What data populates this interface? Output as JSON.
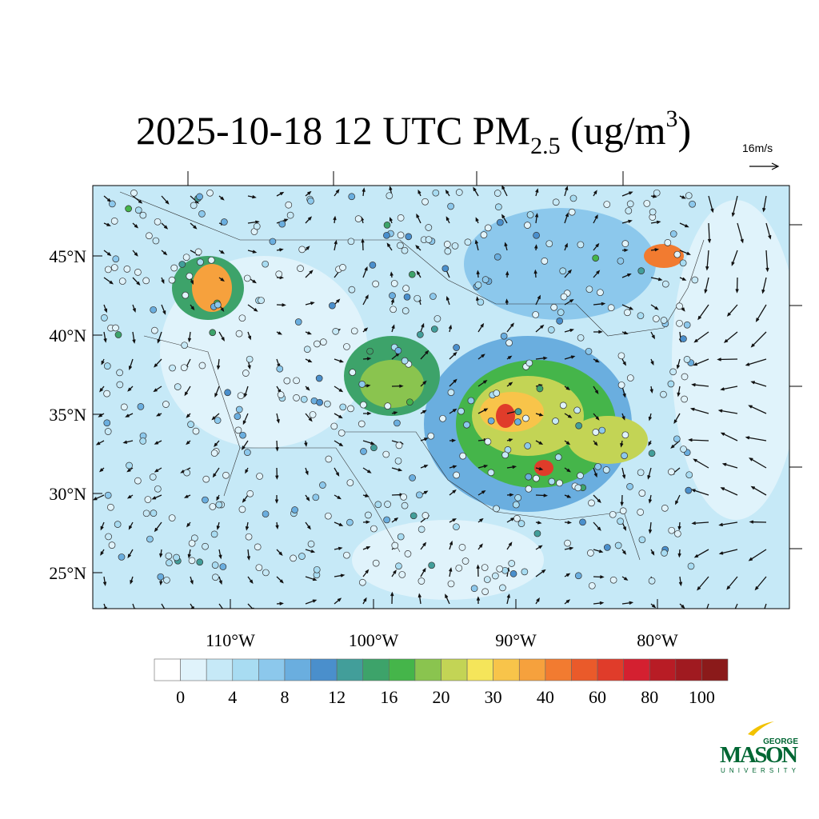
{
  "title": {
    "main": "2025-10-18 12 UTC PM",
    "subscript": "2.5",
    "unit_open": " (ug/m",
    "superscript": "3",
    "unit_close": ")"
  },
  "vector_reference": "16m/s",
  "lat_labels": [
    "45°N",
    "40°N",
    "35°N",
    "30°N",
    "25°N"
  ],
  "lon_labels": [
    "110°W",
    "100°W",
    "90°W",
    "80°W"
  ],
  "colorbar": {
    "labels": [
      "0",
      "4",
      "8",
      "12",
      "16",
      "20",
      "30",
      "40",
      "60",
      "80",
      "100"
    ],
    "colors": [
      "#ffffff",
      "#e0f3fb",
      "#c6e9f7",
      "#a8dcf2",
      "#8cc8ec",
      "#6aaedf",
      "#4a8fcc",
      "#429e9a",
      "#3da36a",
      "#45b54a",
      "#8ac44f",
      "#c3d455",
      "#f5e55a",
      "#f8c44a",
      "#f6a13d",
      "#f27b30",
      "#ea5a2a",
      "#e03c2a",
      "#d42030",
      "#b81c25",
      "#a01a20",
      "#8b1a1a"
    ]
  },
  "logo": {
    "top": "GEORGE",
    "main": "MASON",
    "bottom": "UNIVERSITY"
  }
}
